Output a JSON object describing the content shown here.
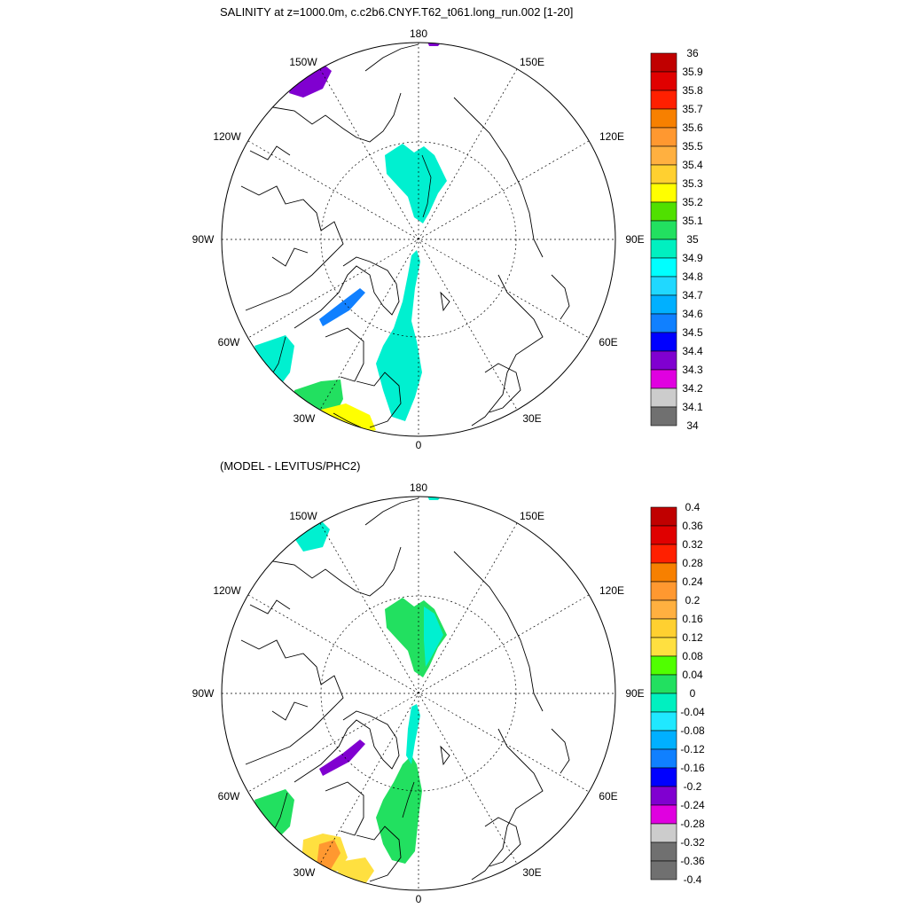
{
  "top_panel": {
    "title": "SALINITY at z=1000.0m, c.c2b6.CNYF.T62_t061.long_run.002 [1-20]",
    "colorbar": {
      "labels": [
        "36",
        "35.9",
        "35.8",
        "35.7",
        "35.6",
        "35.5",
        "35.4",
        "35.3",
        "35.2",
        "35.1",
        "35",
        "34.9",
        "34.8",
        "34.7",
        "34.6",
        "34.5",
        "34.4",
        "34.3",
        "34.2",
        "34.1",
        "34"
      ],
      "colors": [
        "#c00000",
        "#e00000",
        "#ff2000",
        "#f78000",
        "#ff9830",
        "#ffb040",
        "#ffd030",
        "#ffff00",
        "#50e000",
        "#22e060",
        "#00f0c0",
        "#00ffff",
        "#20d8ff",
        "#00b0ff",
        "#1080ff",
        "#0000ff",
        "#8000d0",
        "#e000e0",
        "#cccccc",
        "#707070"
      ]
    }
  },
  "bottom_panel": {
    "title": "(MODEL - LEVITUS/PHC2)",
    "colorbar": {
      "labels": [
        "0.4",
        "0.36",
        "0.32",
        "0.28",
        "0.24",
        "0.2",
        "0.16",
        "0.12",
        "0.08",
        "0.04",
        "0",
        "-0.04",
        "-0.08",
        "-0.12",
        "-0.16",
        "-0.2",
        "-0.24",
        "-0.28",
        "-0.32",
        "-0.36",
        "-0.4"
      ],
      "colors": [
        "#c00000",
        "#e00000",
        "#ff2000",
        "#f78000",
        "#ff9830",
        "#ffb040",
        "#ffd030",
        "#ffe040",
        "#50ff00",
        "#22e060",
        "#00f0c0",
        "#20e8ff",
        "#00b0ff",
        "#1080ff",
        "#0000ff",
        "#8000d0",
        "#e000e0",
        "#cccccc",
        "#707070",
        "#707070"
      ]
    }
  },
  "longitude_labels": [
    "180",
    "150E",
    "120E",
    "90E",
    "60E",
    "30E",
    "0",
    "30W",
    "60W",
    "90W",
    "120W",
    "150W"
  ],
  "colors": {
    "line": "#000000",
    "top_field": "#00f0d0",
    "top_pacific": "#8000d0",
    "top_baffin": "#1080ff",
    "top_green": "#22e060",
    "top_yellow": "#ffff00",
    "bot_green": "#22e060",
    "bot_cyan": "#00f0d0",
    "bot_purple": "#8000d0",
    "bot_yellow": "#ffe040",
    "bot_orange": "#ff9830"
  }
}
